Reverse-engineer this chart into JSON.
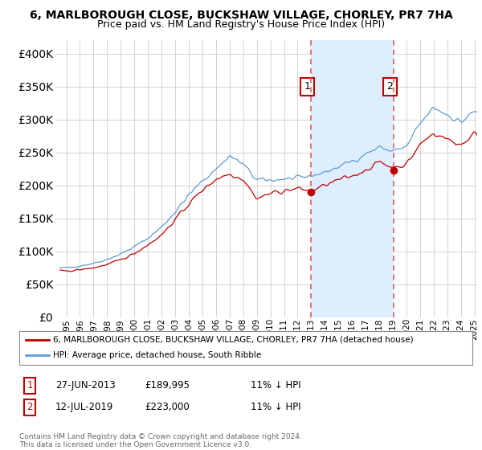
{
  "title": "6, MARLBOROUGH CLOSE, BUCKSHAW VILLAGE, CHORLEY, PR7 7HA",
  "subtitle": "Price paid vs. HM Land Registry's House Price Index (HPI)",
  "legend_line1": "6, MARLBOROUGH CLOSE, BUCKSHAW VILLAGE, CHORLEY, PR7 7HA (detached house)",
  "legend_line2": "HPI: Average price, detached house, South Ribble",
  "transaction1_date": "27-JUN-2013",
  "transaction1_price": 189995,
  "transaction1_label": "£189,995",
  "transaction1_hpi": "11% ↓ HPI",
  "transaction2_date": "12-JUL-2019",
  "transaction2_price": 223000,
  "transaction2_label": "£223,000",
  "transaction2_hpi": "11% ↓ HPI",
  "copyright": "Contains HM Land Registry data © Crown copyright and database right 2024.\nThis data is licensed under the Open Government Licence v3.0.",
  "hpi_color": "#5b9bd5",
  "property_color": "#c00000",
  "dashed_color": "#e06060",
  "shade_color": "#ddeeff",
  "marker_box_color": "#c00000",
  "background_color": "#ffffff",
  "grid_color": "#cccccc",
  "ylim": [
    0,
    420000
  ],
  "yticks": [
    0,
    50000,
    100000,
    150000,
    200000,
    250000,
    300000,
    350000,
    400000
  ],
  "transaction1_x": 2013.5,
  "transaction2_x": 2019.583,
  "figsize": [
    6.0,
    5.6
  ],
  "dpi": 100
}
